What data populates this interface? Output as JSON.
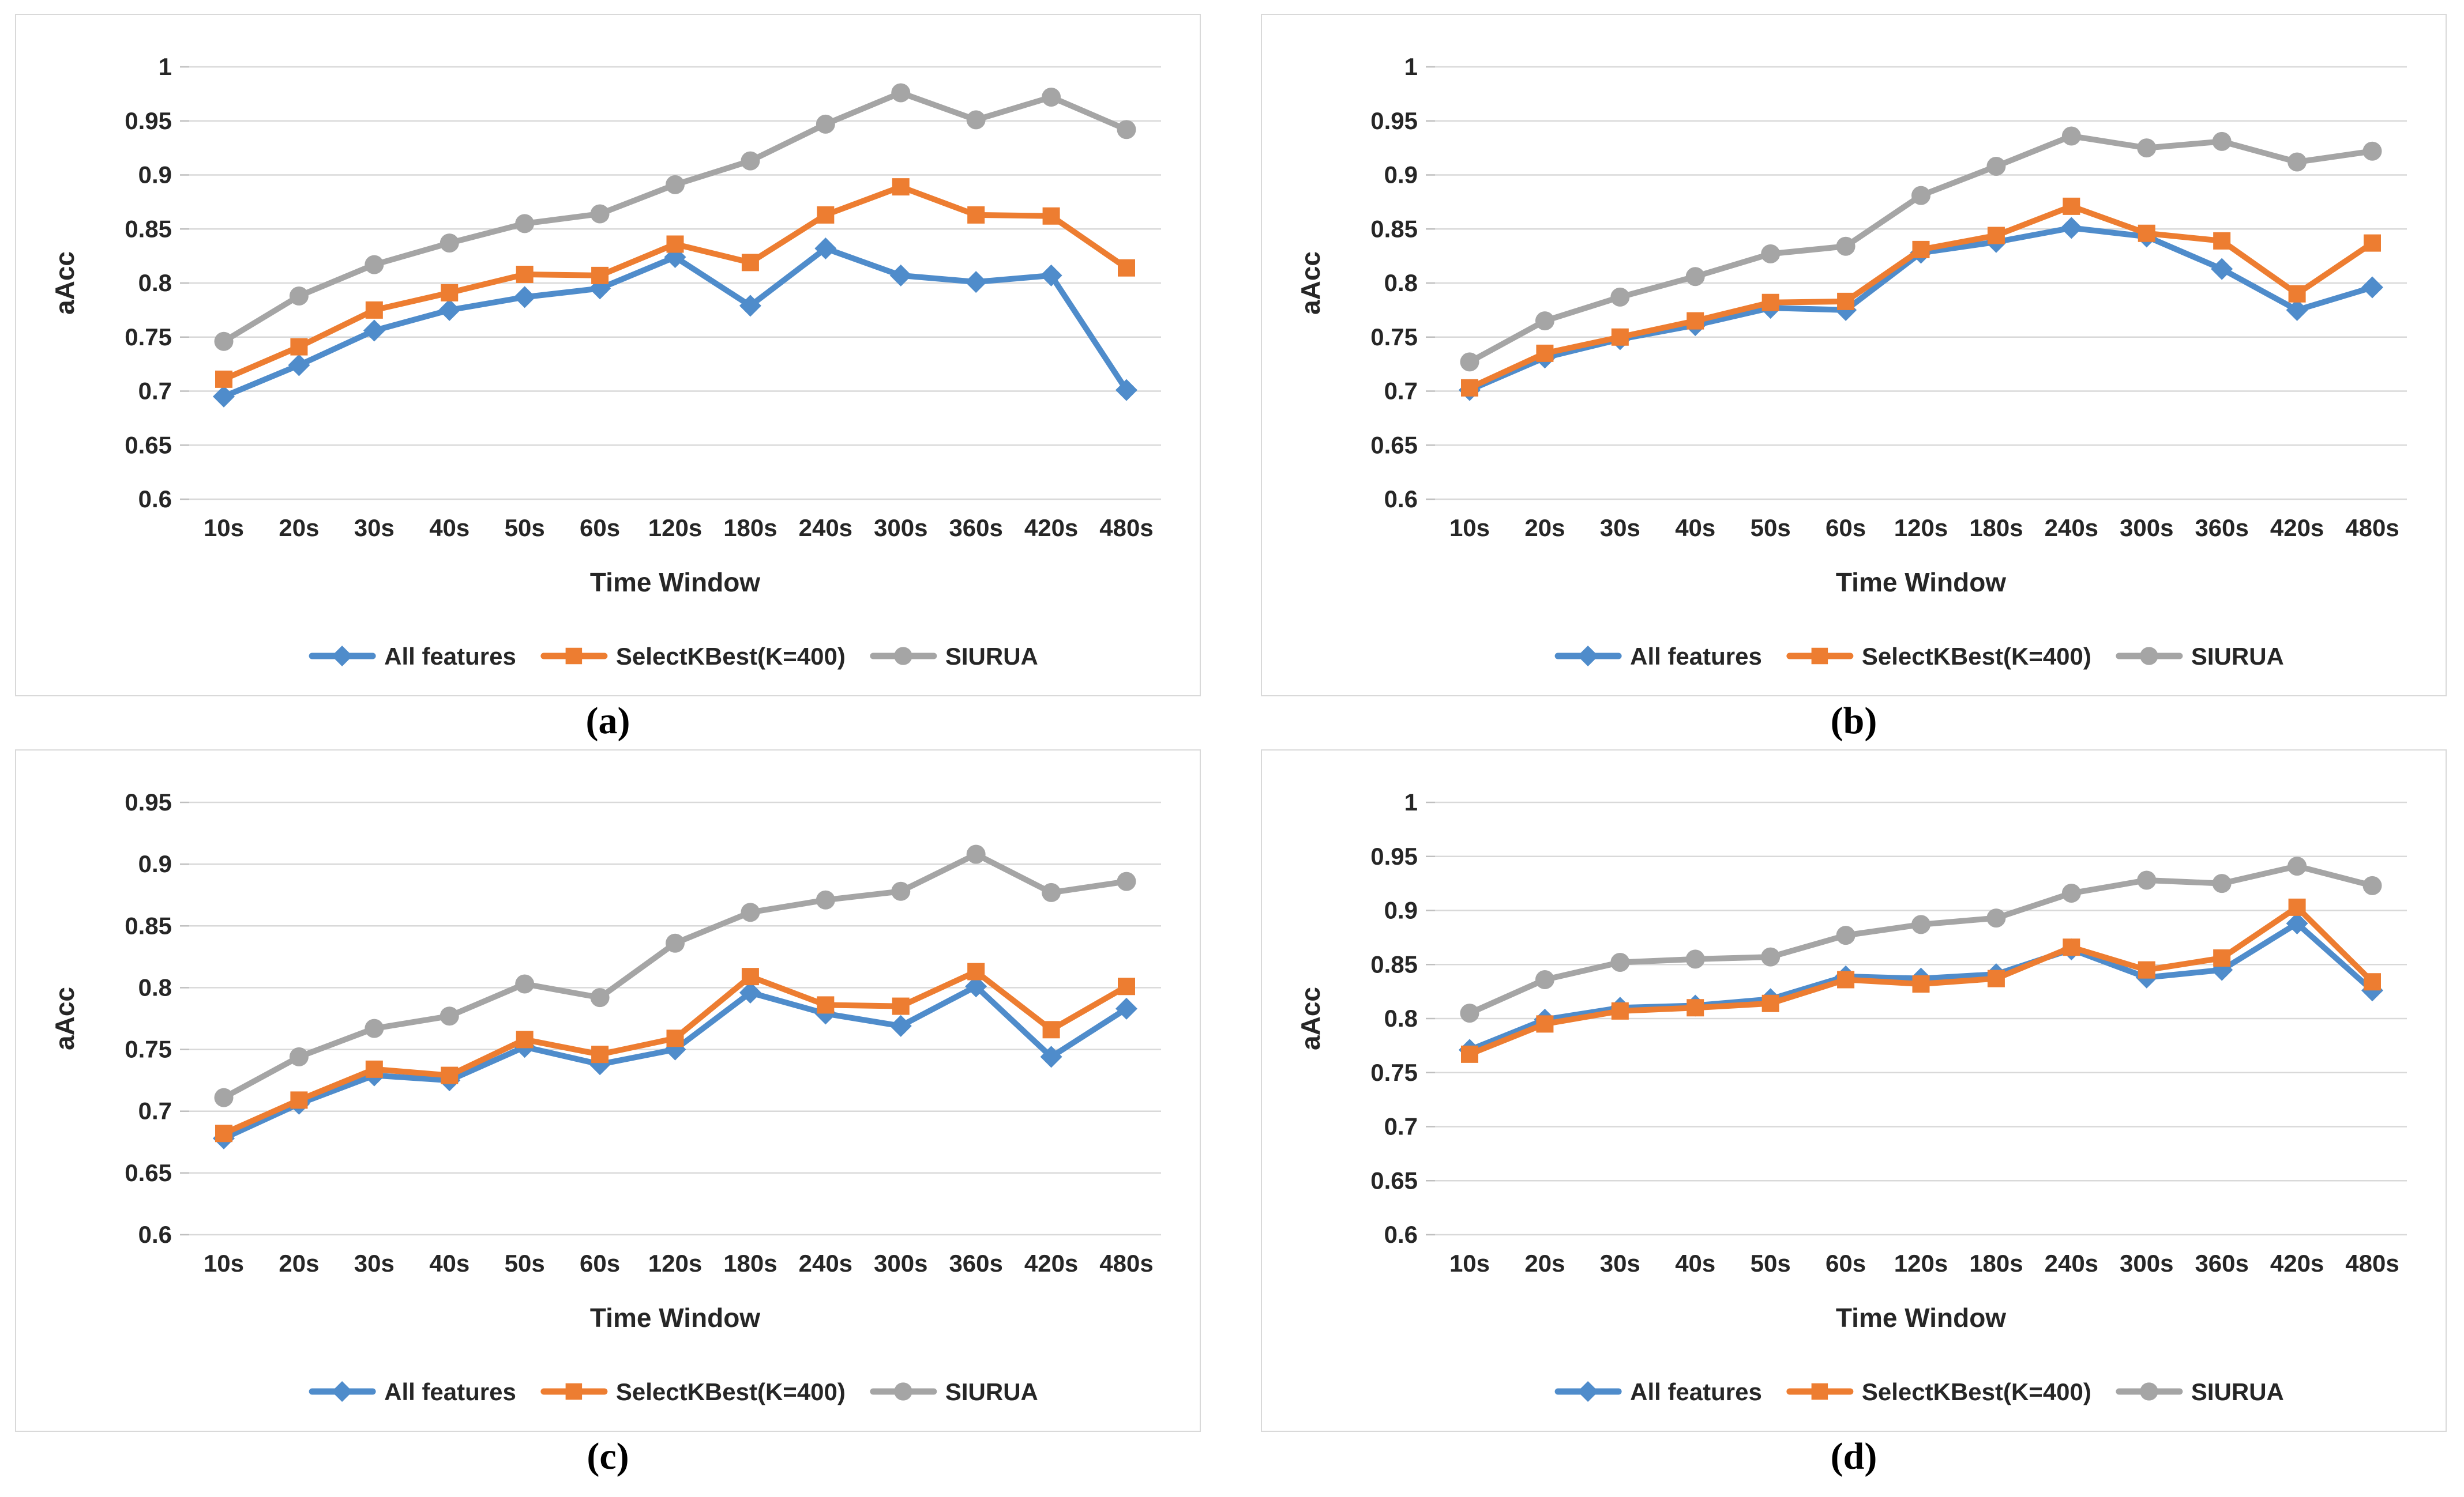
{
  "captions": {
    "a": "(a)",
    "b": "(b)",
    "c": "(c)",
    "d": "(d)"
  },
  "colors": {
    "all_features": "#4F8CCB",
    "selectkbest": "#ED7D31",
    "siurua": "#A5A5A5",
    "gridline": "#D9D9D9",
    "tick_mark": "#BFBFBF",
    "text": "#262626",
    "panel_border": "#D9D9D9"
  },
  "legend": {
    "items": [
      {
        "label": "All features",
        "marker": "diamond"
      },
      {
        "label": "SelectKBest(K=400)",
        "marker": "square"
      },
      {
        "label": "SIURUA",
        "marker": "circle"
      }
    ]
  },
  "chart_data": [
    {
      "id": "a",
      "type": "line",
      "title": "",
      "xlabel": "Time Window",
      "ylabel": "aAcc",
      "grid": true,
      "legend_position": "bottom",
      "categories": [
        "10s",
        "20s",
        "30s",
        "40s",
        "50s",
        "60s",
        "120s",
        "180s",
        "240s",
        "300s",
        "360s",
        "420s",
        "480s"
      ],
      "ylim": [
        0.6,
        1.0
      ],
      "ytick_step": 0.05,
      "series": [
        {
          "name": "All features",
          "marker": "diamond",
          "color_key": "all_features",
          "values": [
            0.695,
            0.724,
            0.756,
            0.775,
            0.787,
            0.795,
            0.824,
            0.779,
            0.832,
            0.807,
            0.801,
            0.807,
            0.701
          ]
        },
        {
          "name": "SelectKBest(K=400)",
          "marker": "square",
          "color_key": "selectkbest",
          "values": [
            0.711,
            0.741,
            0.775,
            0.791,
            0.808,
            0.807,
            0.836,
            0.819,
            0.863,
            0.889,
            0.863,
            0.862,
            0.814
          ]
        },
        {
          "name": "SIURUA",
          "marker": "circle",
          "color_key": "siurua",
          "values": [
            0.746,
            0.788,
            0.817,
            0.837,
            0.855,
            0.864,
            0.891,
            0.913,
            0.947,
            0.976,
            0.951,
            0.972,
            0.942
          ]
        }
      ]
    },
    {
      "id": "b",
      "type": "line",
      "title": "",
      "xlabel": "Time Window",
      "ylabel": "aAcc",
      "grid": true,
      "legend_position": "bottom",
      "categories": [
        "10s",
        "20s",
        "30s",
        "40s",
        "50s",
        "60s",
        "120s",
        "180s",
        "240s",
        "300s",
        "360s",
        "420s",
        "480s"
      ],
      "ylim": [
        0.6,
        1.0
      ],
      "ytick_step": 0.05,
      "series": [
        {
          "name": "All features",
          "marker": "diamond",
          "color_key": "all_features",
          "values": [
            0.701,
            0.731,
            0.748,
            0.761,
            0.777,
            0.775,
            0.828,
            0.838,
            0.851,
            0.843,
            0.813,
            0.775,
            0.796
          ]
        },
        {
          "name": "SelectKBest(K=400)",
          "marker": "square",
          "color_key": "selectkbest",
          "values": [
            0.703,
            0.735,
            0.75,
            0.765,
            0.782,
            0.783,
            0.831,
            0.844,
            0.871,
            0.846,
            0.839,
            0.79,
            0.837
          ]
        },
        {
          "name": "SIURUA",
          "marker": "circle",
          "color_key": "siurua",
          "values": [
            0.727,
            0.765,
            0.787,
            0.806,
            0.827,
            0.834,
            0.881,
            0.908,
            0.936,
            0.925,
            0.931,
            0.912,
            0.922
          ]
        }
      ]
    },
    {
      "id": "c",
      "type": "line",
      "title": "",
      "xlabel": "Time Window",
      "ylabel": "aAcc",
      "grid": true,
      "legend_position": "bottom",
      "categories": [
        "10s",
        "20s",
        "30s",
        "40s",
        "50s",
        "60s",
        "120s",
        "180s",
        "240s",
        "300s",
        "360s",
        "420s",
        "480s"
      ],
      "ylim": [
        0.6,
        0.95
      ],
      "ytick_step": 0.05,
      "series": [
        {
          "name": "All features",
          "marker": "diamond",
          "color_key": "all_features",
          "values": [
            0.678,
            0.706,
            0.729,
            0.725,
            0.752,
            0.738,
            0.75,
            0.796,
            0.779,
            0.769,
            0.801,
            0.744,
            0.783
          ]
        },
        {
          "name": "SelectKBest(K=400)",
          "marker": "square",
          "color_key": "selectkbest",
          "values": [
            0.682,
            0.709,
            0.734,
            0.729,
            0.758,
            0.746,
            0.759,
            0.809,
            0.786,
            0.785,
            0.813,
            0.766,
            0.801
          ]
        },
        {
          "name": "SIURUA",
          "marker": "circle",
          "color_key": "siurua",
          "values": [
            0.711,
            0.744,
            0.767,
            0.777,
            0.803,
            0.792,
            0.836,
            0.861,
            0.871,
            0.878,
            0.908,
            0.877,
            0.886
          ]
        }
      ]
    },
    {
      "id": "d",
      "type": "line",
      "title": "",
      "xlabel": "Time Window",
      "ylabel": "aAcc",
      "grid": true,
      "legend_position": "bottom",
      "categories": [
        "10s",
        "20s",
        "30s",
        "40s",
        "50s",
        "60s",
        "120s",
        "180s",
        "240s",
        "300s",
        "360s",
        "420s",
        "480s"
      ],
      "ylim": [
        0.6,
        1.0
      ],
      "ytick_step": 0.05,
      "series": [
        {
          "name": "All features",
          "marker": "diamond",
          "color_key": "all_features",
          "values": [
            0.771,
            0.799,
            0.81,
            0.812,
            0.818,
            0.839,
            0.837,
            0.841,
            0.864,
            0.838,
            0.845,
            0.888,
            0.826
          ]
        },
        {
          "name": "SelectKBest(K=400)",
          "marker": "square",
          "color_key": "selectkbest",
          "values": [
            0.767,
            0.795,
            0.807,
            0.81,
            0.814,
            0.836,
            0.832,
            0.837,
            0.866,
            0.845,
            0.856,
            0.903,
            0.834
          ]
        },
        {
          "name": "SIURUA",
          "marker": "circle",
          "color_key": "siurua",
          "values": [
            0.805,
            0.836,
            0.852,
            0.855,
            0.857,
            0.877,
            0.887,
            0.893,
            0.916,
            0.928,
            0.925,
            0.941,
            0.923
          ]
        }
      ]
    }
  ]
}
